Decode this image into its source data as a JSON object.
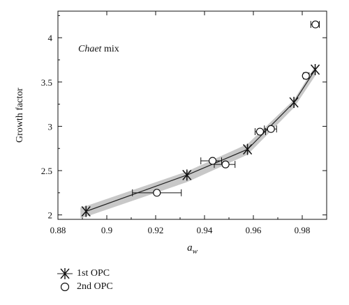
{
  "chart_data": {
    "type": "scatter",
    "annotation": {
      "italic": "Chaet",
      "rest": " mix"
    },
    "xlabel": "a",
    "xlabel_sub": "w",
    "ylabel": "Growth factor",
    "xlim": [
      0.88,
      0.99
    ],
    "ylim": [
      1.95,
      4.3
    ],
    "x_ticks": [
      0.88,
      0.9,
      0.92,
      0.94,
      0.96,
      0.98
    ],
    "x_tick_labels": [
      "0.88",
      "0.9",
      "0.92",
      "0.94",
      "0.96",
      "0.98"
    ],
    "y_ticks": [
      2,
      2.5,
      3,
      3.5,
      4
    ],
    "y_tick_labels": [
      "2",
      "2.5",
      "3",
      "3.5",
      "4"
    ],
    "grid": false,
    "legend_position": "bottom-left",
    "band_color": "#c8c8c8",
    "line_color": "#222222",
    "series": [
      {
        "name": "1st OPC",
        "marker": "asterisk",
        "connected": true,
        "points": [
          {
            "x": 0.8915,
            "y": 2.04
          },
          {
            "x": 0.9328,
            "y": 2.45
          },
          {
            "x": 0.9576,
            "y": 2.74
          },
          {
            "x": 0.9766,
            "y": 3.27
          },
          {
            "x": 0.9853,
            "y": 3.64
          }
        ],
        "band": {
          "upper": [
            2.1,
            2.49,
            2.8,
            3.3,
            3.68
          ],
          "lower": [
            1.98,
            2.37,
            2.68,
            3.21,
            3.57
          ]
        }
      },
      {
        "name": "2nd OPC",
        "marker": "circle",
        "connected": false,
        "points": [
          {
            "x": 0.9205,
            "y": 2.25,
            "xerr": [
              0.9105,
              0.9305
            ]
          },
          {
            "x": 0.9433,
            "y": 2.61,
            "xerr": [
              0.9385,
              0.947
            ]
          },
          {
            "x": 0.9486,
            "y": 2.57,
            "xerr": [
              0.944,
              0.9525
            ]
          },
          {
            "x": 0.9627,
            "y": 2.94,
            "xerr": [
              0.9607,
              0.965
            ]
          },
          {
            "x": 0.9672,
            "y": 2.97,
            "xerr": [
              0.9645,
              0.9695
            ]
          },
          {
            "x": 0.9815,
            "y": 3.57,
            "xerr": [
              0.9805,
              0.9828
            ]
          },
          {
            "x": 0.9854,
            "y": 4.15,
            "xerr": [
              0.9835,
              0.987
            ]
          }
        ]
      }
    ]
  }
}
